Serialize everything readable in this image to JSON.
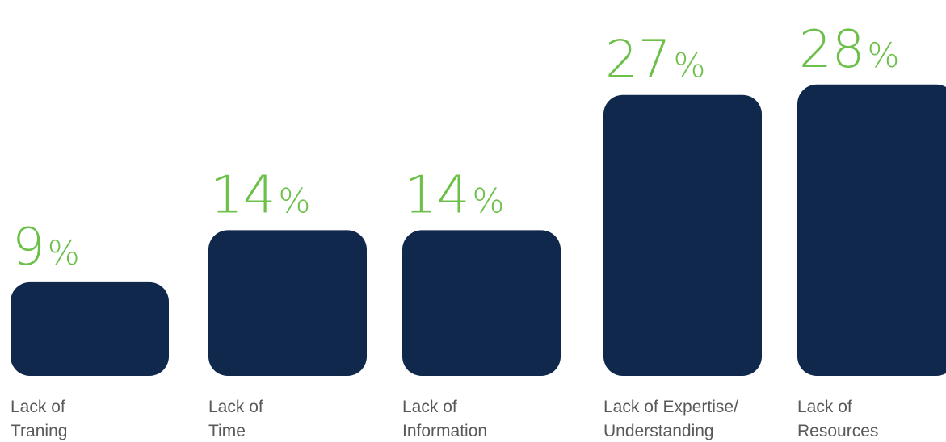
{
  "chart_data": {
    "type": "bar",
    "categories": [
      [
        "Lack of",
        "Traning"
      ],
      [
        "Lack of",
        "Time"
      ],
      [
        "Lack of",
        "Information"
      ],
      [
        "Lack of Expertise/",
        "Understanding"
      ],
      [
        "Lack of",
        "Resources"
      ]
    ],
    "values": [
      9,
      14,
      14,
      27,
      28
    ],
    "value_labels": [
      "9",
      "14",
      "14",
      "27",
      "28"
    ],
    "value_suffix": "%",
    "title": "",
    "xlabel": "",
    "ylabel": "",
    "ylim": [
      0,
      28
    ],
    "grid": false,
    "legend": "none"
  },
  "colors": {
    "bar": "#10284b",
    "value_label": "#6cc04a",
    "category_label": "#58595b",
    "background": "#ffffff"
  }
}
